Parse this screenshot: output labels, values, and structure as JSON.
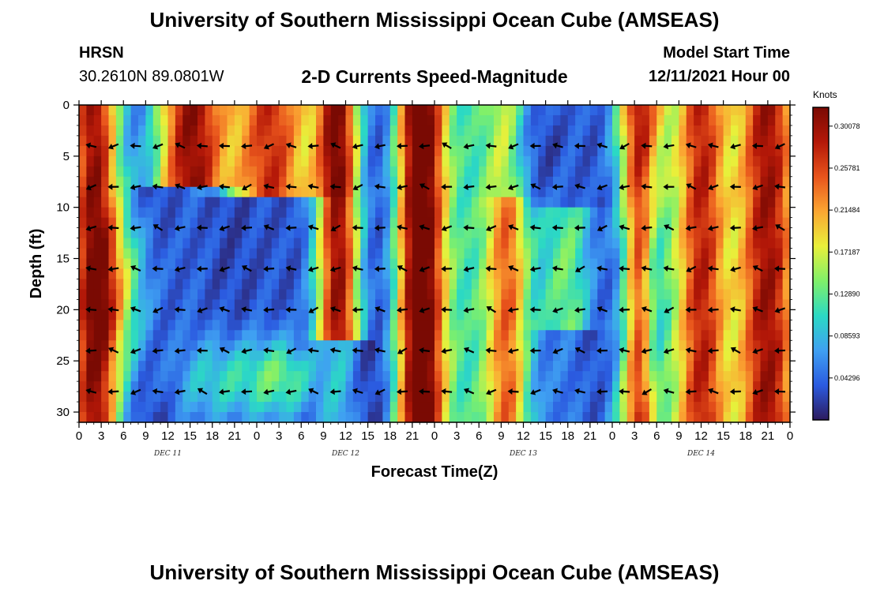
{
  "header": {
    "title": "University of Southern Mississippi Ocean Cube (AMSEAS)",
    "station_id": "HRSN",
    "location": "30.2610N  89.0801W",
    "product": "2-D Currents Speed-Magnitude",
    "model_start_label": "Model Start Time",
    "model_start_value": "12/11/2021 Hour 00"
  },
  "footer": {
    "title_repeat": "University of Southern Mississippi Ocean Cube (AMSEAS)"
  },
  "colors": {
    "scale": [
      "#2d1b5e",
      "#2b5be0",
      "#3fa0f2",
      "#2bd9c4",
      "#7ff06a",
      "#e9f03a",
      "#fba632",
      "#e8541c",
      "#b41808",
      "#7a0a03"
    ]
  },
  "chart_data": {
    "type": "heatmap",
    "title": "2-D Currents Speed-Magnitude",
    "xlabel": "Forecast Time(Z)",
    "ylabel": "Depth (ft)",
    "xlim": [
      0,
      96
    ],
    "ylim": [
      31,
      0
    ],
    "x_tick_hours": [
      0,
      3,
      6,
      9,
      12,
      15,
      18,
      21,
      24,
      27,
      30,
      33,
      36,
      39,
      42,
      45,
      48,
      51,
      54,
      57,
      60,
      63,
      66,
      69,
      72,
      75,
      78,
      81,
      84,
      87,
      90,
      93,
      96
    ],
    "x_tick_labels": [
      "0",
      "3",
      "6",
      "9",
      "12",
      "15",
      "18",
      "21",
      "0",
      "3",
      "6",
      "9",
      "12",
      "15",
      "18",
      "21",
      "0",
      "3",
      "6",
      "9",
      "12",
      "15",
      "18",
      "21",
      "0",
      "3",
      "6",
      "9",
      "12",
      "15",
      "18",
      "21",
      "0"
    ],
    "day_labels": [
      {
        "hour": 12,
        "label": "DEC 11"
      },
      {
        "hour": 36,
        "label": "DEC 12"
      },
      {
        "hour": 60,
        "label": "DEC 13"
      },
      {
        "hour": 84,
        "label": "DEC 14"
      }
    ],
    "y_ticks": [
      0,
      5,
      10,
      15,
      20,
      25,
      30
    ],
    "y_tick_labels": [
      "0",
      "5",
      "10",
      "15",
      "20",
      "25",
      "30"
    ],
    "colorbar": {
      "unit_label": "Knots",
      "min": 0.0,
      "max": 0.32,
      "tick_values": [
        0.04296,
        0.08593,
        0.1289,
        0.17187,
        0.21484,
        0.25781,
        0.30078
      ],
      "tick_labels": [
        "0.04296",
        "0.08593",
        "0.12890",
        "0.17187",
        "0.21484",
        "0.25781",
        "0.30078"
      ]
    },
    "vector_depths_ft": [
      4,
      8,
      12,
      16,
      20,
      24,
      28
    ],
    "vector_hours": [
      3,
      6,
      9,
      12,
      15,
      18,
      21,
      24,
      27,
      30,
      33,
      36,
      39,
      42,
      45,
      48,
      51,
      54,
      57,
      60,
      63,
      66,
      69,
      72,
      75,
      78,
      81,
      84,
      87,
      90,
      93,
      96
    ],
    "vector_direction_note": "arrows point mostly westward (ebb/flood tidal currents)"
  }
}
